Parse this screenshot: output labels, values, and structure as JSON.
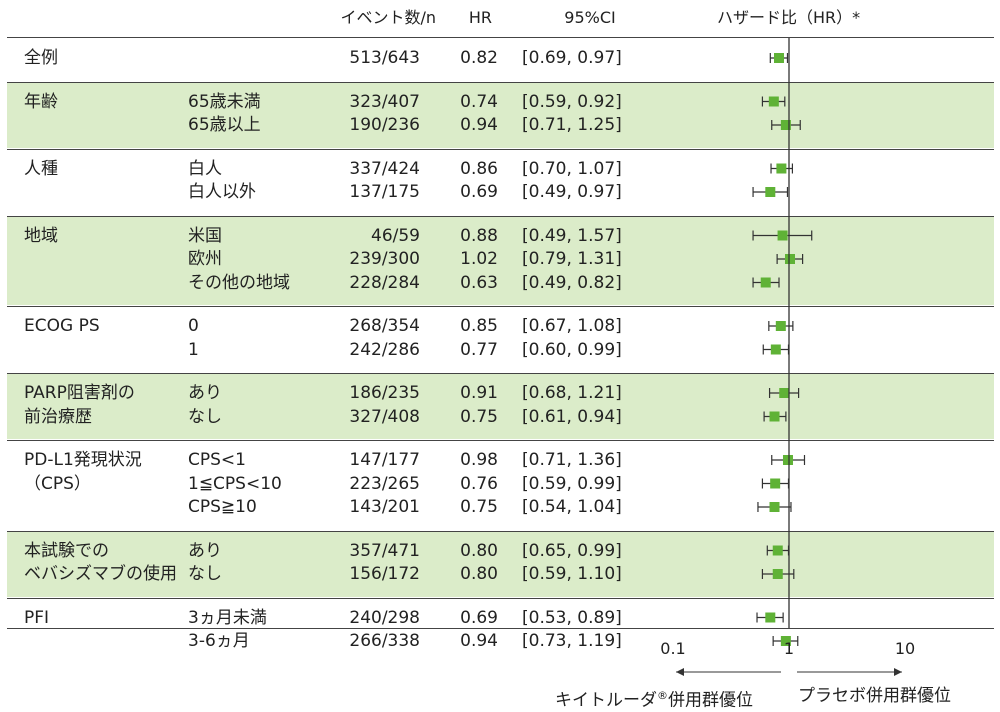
{
  "header": {
    "events": "イベント数/n",
    "hr": "HR",
    "ci": "95%CI",
    "forest_title": "ハザード比（HR）*"
  },
  "colors": {
    "band": "#dbecc9",
    "marker": "#5fb236",
    "line": "#333333"
  },
  "groups": [
    {
      "label_lines": [
        "全例"
      ],
      "shaded": false,
      "rows": [
        {
          "sub": "",
          "events": "513/643",
          "hr": "0.82",
          "ci": "[0.69, 0.97]"
        }
      ]
    },
    {
      "label_lines": [
        "年齢"
      ],
      "shaded": true,
      "rows": [
        {
          "sub": "65歳未満",
          "events": "323/407",
          "hr": "0.74",
          "ci": "[0.59, 0.92]"
        },
        {
          "sub": "65歳以上",
          "events": "190/236",
          "hr": "0.94",
          "ci": "[0.71, 1.25]"
        }
      ]
    },
    {
      "label_lines": [
        "人種"
      ],
      "shaded": false,
      "rows": [
        {
          "sub": "白人",
          "events": "337/424",
          "hr": "0.86",
          "ci": "[0.70, 1.07]"
        },
        {
          "sub": "白人以外",
          "events": "137/175",
          "hr": "0.69",
          "ci": "[0.49, 0.97]"
        }
      ]
    },
    {
      "label_lines": [
        "地域"
      ],
      "shaded": true,
      "rows": [
        {
          "sub": "米国",
          "events": "46/59",
          "hr": "0.88",
          "ci": "[0.49, 1.57]"
        },
        {
          "sub": "欧州",
          "events": "239/300",
          "hr": "1.02",
          "ci": "[0.79, 1.31]"
        },
        {
          "sub": "その他の地域",
          "events": "228/284",
          "hr": "0.63",
          "ci": "[0.49, 0.82]"
        }
      ]
    },
    {
      "label_lines": [
        "ECOG PS"
      ],
      "shaded": false,
      "rows": [
        {
          "sub": "0",
          "events": "268/354",
          "hr": "0.85",
          "ci": "[0.67, 1.08]"
        },
        {
          "sub": "1",
          "events": "242/286",
          "hr": "0.77",
          "ci": "[0.60, 0.99]"
        }
      ]
    },
    {
      "label_lines": [
        "PARP阻害剤の",
        "前治療歴"
      ],
      "shaded": true,
      "rows": [
        {
          "sub": "あり",
          "events": "186/235",
          "hr": "0.91",
          "ci": "[0.68, 1.21]"
        },
        {
          "sub": "なし",
          "events": "327/408",
          "hr": "0.75",
          "ci": "[0.61, 0.94]"
        }
      ]
    },
    {
      "label_lines": [
        "PD-L1発現状況",
        "（CPS）"
      ],
      "shaded": false,
      "rows": [
        {
          "sub": "CPS<1",
          "events": "147/177",
          "hr": "0.98",
          "ci": "[0.71, 1.36]"
        },
        {
          "sub": "1≦CPS<10",
          "events": "223/265",
          "hr": "0.76",
          "ci": "[0.59, 0.99]"
        },
        {
          "sub": "CPS≧10",
          "events": "143/201",
          "hr": "0.75",
          "ci": "[0.54, 1.04]"
        }
      ]
    },
    {
      "label_lines": [
        "本試験での",
        "ベバシズマブの使用"
      ],
      "shaded": true,
      "rows": [
        {
          "sub": "あり",
          "events": "357/471",
          "hr": "0.80",
          "ci": "[0.65, 0.99]"
        },
        {
          "sub": "なし",
          "events": "156/172",
          "hr": "0.80",
          "ci": "[0.59, 1.10]"
        }
      ]
    },
    {
      "label_lines": [
        "PFI"
      ],
      "shaded": false,
      "rows": [
        {
          "sub": "3ヵ月未満",
          "events": "240/298",
          "hr": "0.69",
          "ci": "[0.53, 0.89]"
        },
        {
          "sub": "3-6ヵ月",
          "events": "266/338",
          "hr": "0.94",
          "ci": "[0.73, 1.19]"
        }
      ]
    }
  ],
  "footer": {
    "left_label": "キイトルーダ",
    "registered": "®",
    "left_suffix": "併用群優位",
    "right_label": "プラセボ併用群優位"
  },
  "chart_data": {
    "type": "scatter",
    "title": "ハザード比（HR）*",
    "xscale": "log",
    "xlim": [
      0.1,
      10
    ],
    "xticks": [
      "0.1",
      "1",
      "10"
    ],
    "reference_line": 1,
    "categories": [
      "全例",
      "年齢 65歳未満",
      "年齢 65歳以上",
      "人種 白人",
      "人種 白人以外",
      "地域 米国",
      "地域 欧州",
      "地域 その他の地域",
      "ECOG PS 0",
      "ECOG PS 1",
      "PARP阻害剤の前治療歴 あり",
      "PARP阻害剤の前治療歴 なし",
      "PD-L1発現状況（CPS） CPS<1",
      "PD-L1発現状況（CPS） 1≦CPS<10",
      "PD-L1発現状況（CPS） CPS≧10",
      "本試験でのベバシズマブの使用 あり",
      "本試験でのベバシズマブの使用 なし",
      "PFI 3ヵ月未満",
      "PFI 3-6ヵ月"
    ],
    "hr": [
      0.82,
      0.74,
      0.94,
      0.86,
      0.69,
      0.88,
      1.02,
      0.63,
      0.85,
      0.77,
      0.91,
      0.75,
      0.98,
      0.76,
      0.75,
      0.8,
      0.8,
      0.69,
      0.94
    ],
    "lower": [
      0.69,
      0.59,
      0.71,
      0.7,
      0.49,
      0.49,
      0.79,
      0.49,
      0.67,
      0.6,
      0.68,
      0.61,
      0.71,
      0.59,
      0.54,
      0.65,
      0.59,
      0.53,
      0.73
    ],
    "upper": [
      0.97,
      0.92,
      1.25,
      1.07,
      0.97,
      1.57,
      1.31,
      0.82,
      1.08,
      0.99,
      1.21,
      0.94,
      1.36,
      0.99,
      1.04,
      0.99,
      1.1,
      0.89,
      1.19
    ]
  }
}
